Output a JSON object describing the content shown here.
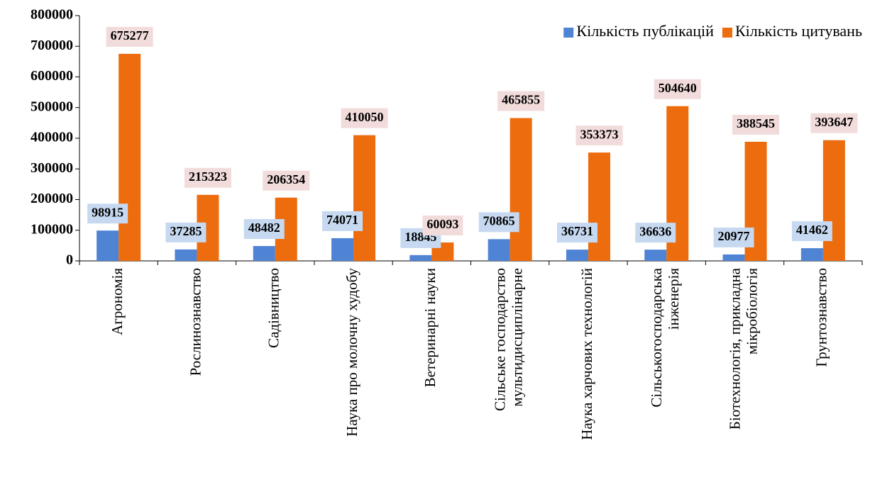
{
  "chart_data": {
    "type": "bar",
    "categories": [
      [
        "Агрономія"
      ],
      [
        "Рослинознавство"
      ],
      [
        "Садівництво"
      ],
      [
        "Наука про молочну худобу"
      ],
      [
        "Ветеринарні науки"
      ],
      [
        "Сільське господарство",
        "мультидисциплінарне"
      ],
      [
        "Наука харчових технологій"
      ],
      [
        "Сільськогосподарська",
        "інженерія"
      ],
      [
        "Біотехнологія, прикладна",
        "мікробіологія"
      ],
      [
        "Грунтознавство"
      ]
    ],
    "series": [
      {
        "name": "Кількість публікацій",
        "color": "#4f83d4",
        "label_bg": "#c6d9f1",
        "values": [
          98915,
          37285,
          48482,
          74071,
          18845,
          70865,
          36731,
          36636,
          20977,
          41462
        ]
      },
      {
        "name": "Кількість цитувань",
        "color": "#ec6c0e",
        "label_bg": "#f2dcdb",
        "values": [
          675277,
          215323,
          206354,
          410050,
          60093,
          465855,
          353373,
          504640,
          388545,
          393647
        ]
      }
    ],
    "ylim": [
      0,
      800000
    ],
    "yticks": [
      0,
      100000,
      200000,
      300000,
      400000,
      500000,
      600000,
      700000,
      800000
    ],
    "grid": false,
    "legend": "upper right"
  }
}
